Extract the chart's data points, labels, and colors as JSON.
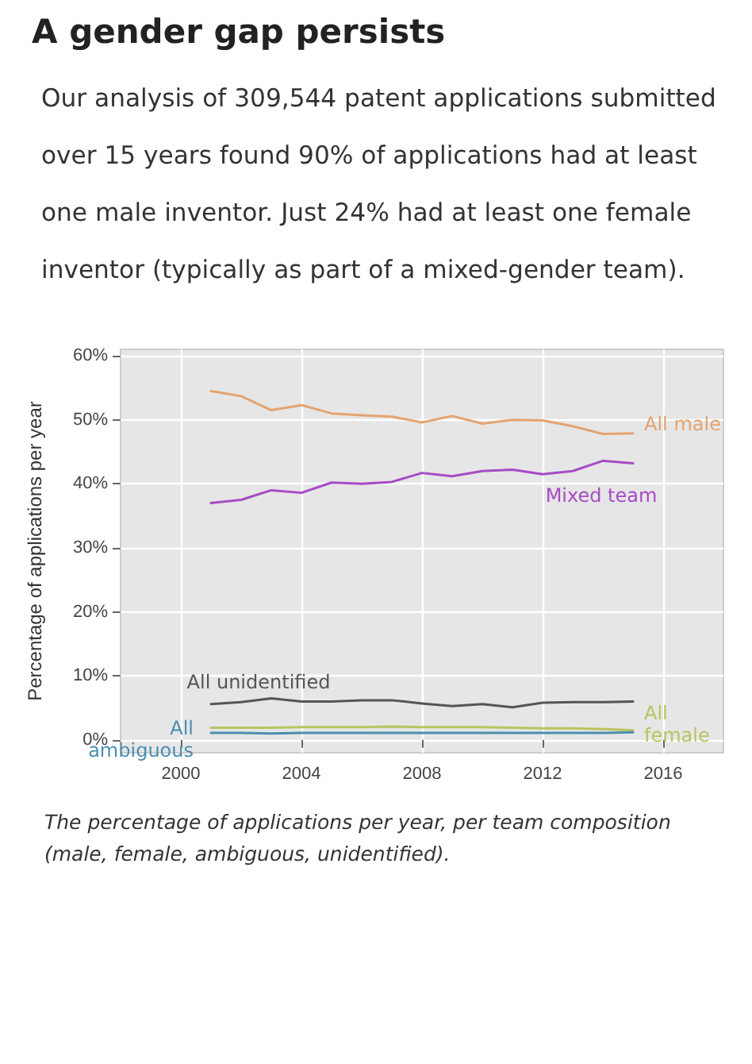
{
  "chart_data": {
    "type": "line",
    "title": "A gender gap persists",
    "subtitle": "Our analysis of 309,544 patent applications submitted over 15 years found 90% of applications had at least one male inventor. Just 24% had at least one female inventor (typically as part of a mixed-gender team).",
    "ylabel": "Percentage of applications per year",
    "x": [
      2001,
      2002,
      2003,
      2004,
      2005,
      2006,
      2007,
      2008,
      2009,
      2010,
      2011,
      2012,
      2013,
      2014,
      2015
    ],
    "series": [
      {
        "name": "All male",
        "color": "#e3a470",
        "values": [
          54.5,
          53.7,
          51.5,
          52.3,
          51,
          50.7,
          50.5,
          49.6,
          50.6,
          49.4,
          50,
          49.9,
          49,
          47.8,
          47.9
        ]
      },
      {
        "name": "Mixed team",
        "color": "#a64bc6",
        "values": [
          37,
          37.5,
          39,
          38.6,
          40.2,
          40,
          40.3,
          41.7,
          41.2,
          42,
          42.2,
          41.5,
          42,
          43.6,
          43.2
        ]
      },
      {
        "name": "All unidentified",
        "color": "#555555",
        "values": [
          5.6,
          5.9,
          6.5,
          6,
          6,
          6.2,
          6.2,
          5.7,
          5.3,
          5.6,
          5.1,
          5.8,
          5.9,
          5.9,
          6
        ]
      },
      {
        "name": "All female",
        "color": "#b9c45e",
        "values": [
          1.9,
          1.9,
          1.9,
          2,
          2,
          2,
          2.1,
          2,
          2,
          2,
          1.9,
          1.8,
          1.8,
          1.7,
          1.5
        ]
      },
      {
        "name": "All ambiguous",
        "color": "#4b8fb0",
        "values": [
          1.1,
          1.1,
          1,
          1.1,
          1.1,
          1.1,
          1.1,
          1.1,
          1.1,
          1.1,
          1.1,
          1.1,
          1.1,
          1.1,
          1.2
        ]
      }
    ],
    "xlim": [
      1998,
      2018
    ],
    "xticks": [
      2000,
      2004,
      2008,
      2012,
      2016
    ],
    "ylim": [
      -2,
      61
    ],
    "yticks": [
      {
        "value": 0,
        "label": "0%"
      },
      {
        "value": 10,
        "label": "10%"
      },
      {
        "value": 20,
        "label": "20%"
      },
      {
        "value": 30,
        "label": "30%"
      },
      {
        "value": 40,
        "label": "40%"
      },
      {
        "value": 50,
        "label": "50%"
      },
      {
        "value": 60,
        "label": "60%"
      }
    ],
    "grid": true,
    "legend": false,
    "marker": "none",
    "line_style": "solid",
    "annotations": [
      "The percentage of applications per year, per team composition (male, female, ambiguous, unidentified)."
    ]
  }
}
